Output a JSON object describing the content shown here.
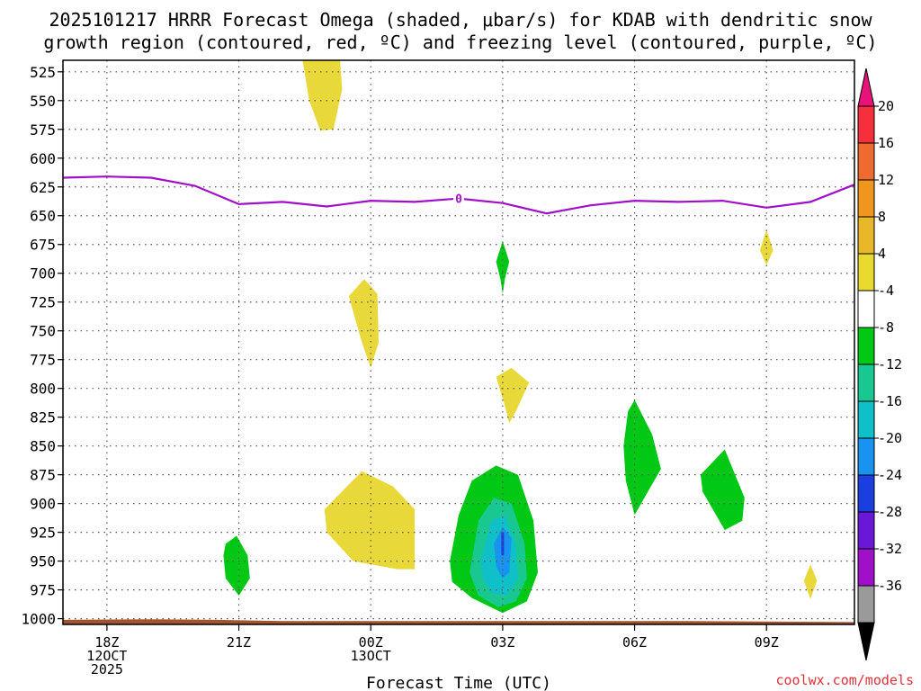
{
  "chart_data": {
    "type": "contour-time-height",
    "title_line1": "2025101217 HRRR Forecast Omega (shaded, μbar/s) for KDAB with dendritic snow",
    "title_line2": "growth region (contoured, red, ºC) and freezing level (contoured, purple, ºC)",
    "xlabel": "Forecast Time (UTC)",
    "credit": "coolwx.com/models",
    "x_range_hours": [
      0,
      18
    ],
    "y_range_hpa": [
      1005,
      515
    ],
    "y_ticks": [
      "525",
      "550",
      "575",
      "600",
      "625",
      "650",
      "675",
      "700",
      "725",
      "750",
      "775",
      "800",
      "825",
      "850",
      "875",
      "900",
      "925",
      "950",
      "975",
      "1000"
    ],
    "x_ticks": [
      {
        "hour": 1,
        "lines": [
          "18Z",
          "12OCT",
          "2025"
        ]
      },
      {
        "hour": 4,
        "lines": [
          "21Z"
        ]
      },
      {
        "hour": 7,
        "lines": [
          "00Z",
          "13OCT"
        ]
      },
      {
        "hour": 10,
        "lines": [
          "03Z"
        ]
      },
      {
        "hour": 13,
        "lines": [
          "06Z"
        ]
      },
      {
        "hour": 16,
        "lines": [
          "09Z"
        ]
      }
    ],
    "freezing_level": {
      "label": "0",
      "label_hour": 9.0,
      "points": [
        [
          0,
          617
        ],
        [
          1,
          616
        ],
        [
          2,
          617
        ],
        [
          3,
          624
        ],
        [
          4,
          640
        ],
        [
          5,
          638
        ],
        [
          6,
          642
        ],
        [
          7,
          637
        ],
        [
          8,
          638
        ],
        [
          9,
          635
        ],
        [
          10,
          639
        ],
        [
          11,
          648
        ],
        [
          12,
          641
        ],
        [
          13,
          637
        ],
        [
          14,
          638
        ],
        [
          15,
          637
        ],
        [
          16,
          643
        ],
        [
          17,
          638
        ],
        [
          18,
          623
        ]
      ]
    },
    "terrain": {
      "color": "#a5532c",
      "points": [
        [
          0,
          1001
        ],
        [
          2,
          1000.5
        ],
        [
          3.5,
          1001
        ],
        [
          5,
          1002
        ],
        [
          10,
          1002
        ],
        [
          14,
          1002
        ],
        [
          18,
          1003
        ]
      ]
    },
    "colorbar": {
      "labels": [
        "20",
        "16",
        "12",
        "8",
        "4",
        "-4",
        "-8",
        "-12",
        "-16",
        "-20",
        "-24",
        "-28",
        "-32",
        "-36"
      ],
      "top_color": "#e8127a",
      "bottom_color": "#000000",
      "bands": [
        "#f5303c",
        "#ee6a2e",
        "#f0961e",
        "#e8b82a",
        "#e8da2e",
        "#ffffff",
        "#00c814",
        "#18c890",
        "#10c0c8",
        "#1894f0",
        "#1a3ee0",
        "#6a18d8",
        "#a010c8",
        "#9a9a9a"
      ]
    },
    "omega_regions": [
      {
        "value": 4,
        "color": "#e8d83a",
        "points": [
          [
            5.45,
            515
          ],
          [
            6.3,
            515
          ],
          [
            6.35,
            540
          ],
          [
            6.15,
            575
          ],
          [
            5.85,
            576
          ],
          [
            5.6,
            550
          ]
        ]
      },
      {
        "value": 4,
        "color": "#e8d83a",
        "points": [
          [
            6.5,
            720
          ],
          [
            6.85,
            705
          ],
          [
            7.15,
            718
          ],
          [
            7.18,
            760
          ],
          [
            7.0,
            782
          ],
          [
            6.8,
            760
          ],
          [
            6.65,
            740
          ]
        ]
      },
      {
        "value": 4,
        "color": "#e8d83a",
        "points": [
          [
            16.0,
            662
          ],
          [
            16.15,
            680
          ],
          [
            16.0,
            693
          ],
          [
            15.85,
            680
          ]
        ]
      },
      {
        "value": 4,
        "color": "#e8d83a",
        "points": [
          [
            9.85,
            790
          ],
          [
            10.2,
            782
          ],
          [
            10.6,
            795
          ],
          [
            10.3,
            820
          ],
          [
            10.15,
            830
          ],
          [
            10.05,
            815
          ]
        ]
      },
      {
        "value": 4,
        "color": "#e8d83a",
        "points": [
          [
            5.95,
            905
          ],
          [
            6.8,
            872
          ],
          [
            7.5,
            885
          ],
          [
            8.0,
            905
          ],
          [
            8.0,
            957
          ],
          [
            7.6,
            957
          ],
          [
            6.6,
            950
          ],
          [
            6.0,
            925
          ]
        ]
      },
      {
        "value": 4,
        "color": "#e8d83a",
        "points": [
          [
            17.0,
            953
          ],
          [
            17.15,
            967
          ],
          [
            17.0,
            983
          ],
          [
            16.85,
            967
          ]
        ]
      },
      {
        "value": -4,
        "color": "#00c814",
        "points": [
          [
            10.0,
            672
          ],
          [
            10.15,
            690
          ],
          [
            10.05,
            705
          ],
          [
            10.0,
            718
          ],
          [
            9.95,
            705
          ],
          [
            9.85,
            690
          ]
        ]
      },
      {
        "value": -4,
        "color": "#00c814",
        "points": [
          [
            13.0,
            810
          ],
          [
            13.4,
            840
          ],
          [
            13.6,
            870
          ],
          [
            13.3,
            890
          ],
          [
            13.0,
            910
          ],
          [
            12.8,
            880
          ],
          [
            12.75,
            850
          ],
          [
            12.85,
            820
          ]
        ]
      },
      {
        "value": -4,
        "color": "#00c814",
        "points": [
          [
            14.5,
            875
          ],
          [
            15.05,
            853
          ],
          [
            15.5,
            895
          ],
          [
            15.45,
            915
          ],
          [
            15.05,
            923
          ],
          [
            14.55,
            890
          ]
        ]
      },
      {
        "value": -4,
        "color": "#00c814",
        "points": [
          [
            3.7,
            935
          ],
          [
            3.95,
            928
          ],
          [
            4.2,
            945
          ],
          [
            4.25,
            965
          ],
          [
            4.0,
            980
          ],
          [
            3.7,
            965
          ],
          [
            3.65,
            945
          ]
        ]
      },
      {
        "value": -4,
        "color": "#00c814",
        "points": [
          [
            8.8,
            950
          ],
          [
            9.0,
            910
          ],
          [
            9.3,
            880
          ],
          [
            9.85,
            867
          ],
          [
            10.35,
            875
          ],
          [
            10.7,
            915
          ],
          [
            10.8,
            960
          ],
          [
            10.55,
            985
          ],
          [
            10.0,
            995
          ],
          [
            9.3,
            982
          ],
          [
            8.85,
            968
          ]
        ]
      },
      {
        "value": -8,
        "color": "#18c890",
        "points": [
          [
            9.25,
            960
          ],
          [
            9.45,
            915
          ],
          [
            9.8,
            895
          ],
          [
            10.2,
            900
          ],
          [
            10.5,
            935
          ],
          [
            10.55,
            965
          ],
          [
            10.3,
            985
          ],
          [
            9.9,
            990
          ],
          [
            9.45,
            980
          ]
        ]
      },
      {
        "value": -12,
        "color": "#10c0c8",
        "points": [
          [
            9.5,
            950
          ],
          [
            9.75,
            915
          ],
          [
            10.05,
            910
          ],
          [
            10.3,
            935
          ],
          [
            10.35,
            965
          ],
          [
            10.1,
            980
          ],
          [
            9.75,
            978
          ],
          [
            9.55,
            965
          ]
        ]
      },
      {
        "value": -16,
        "color": "#1894f0",
        "points": [
          [
            9.8,
            935
          ],
          [
            10.0,
            920
          ],
          [
            10.2,
            930
          ],
          [
            10.15,
            960
          ],
          [
            10.0,
            965
          ],
          [
            9.85,
            955
          ]
        ]
      },
      {
        "value": -20,
        "color": "#1a3ee0",
        "points": [
          [
            9.97,
            925
          ],
          [
            10.03,
            925
          ],
          [
            10.03,
            945
          ],
          [
            9.97,
            945
          ]
        ]
      }
    ]
  }
}
